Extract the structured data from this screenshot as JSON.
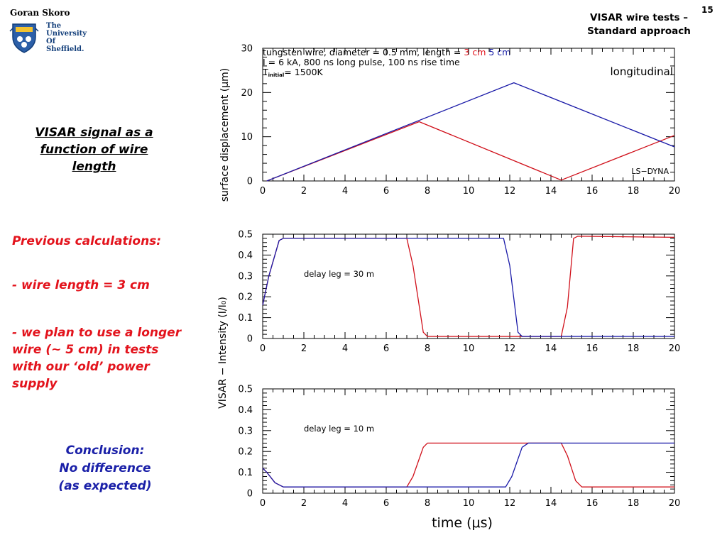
{
  "header": {
    "author": "Goran Skoro",
    "university_lines": [
      "The",
      "University",
      "Of",
      "Sheffield."
    ],
    "title_lines": [
      "VISAR wire tests –",
      "Standard approach"
    ],
    "slide_number": "15"
  },
  "left_panel": {
    "heading_lines": [
      "VISAR signal as a",
      "function of wire",
      "length"
    ],
    "previous_label": "Previous calculations:",
    "bullet1": "- wire length = 3 cm",
    "bullet2_lines": [
      "- we plan to use a longer",
      "wire (~ 5 cm) in tests",
      "with our ‘old’ power",
      "supply"
    ],
    "conclusion_lines": [
      "Conclusion:",
      "No difference",
      "(as expected)"
    ]
  },
  "chart_data": [
    {
      "type": "line",
      "annotation_lines": {
        "line1_prefix": "tungsten wire, diameter = 0.5 mm, length = ",
        "line1_red": "3 cm",
        "line1_blue": "5 cm",
        "line2": "I = 6 kA, 800 ns long pulse, 100 ns rise time",
        "line3_T": "T",
        "line3_sub": "initial",
        "line3_rest": "= 1500K"
      },
      "corner_label": "longitudinal",
      "code_label": "LS−DYNA",
      "ylabel": "surface displacement (μm)",
      "xlim": [
        0,
        20
      ],
      "ylim": [
        0,
        30
      ],
      "xticks": [
        "0",
        "2",
        "4",
        "6",
        "8",
        "10",
        "12",
        "14",
        "16",
        "18",
        "20"
      ],
      "yticks": [
        "0",
        "10",
        "20",
        "30"
      ],
      "series": [
        {
          "name": "3 cm",
          "color": "#d0101a",
          "x": [
            0.2,
            7.6,
            14.5,
            20
          ],
          "y": [
            0,
            13.4,
            0.2,
            10.3
          ]
        },
        {
          "name": "5 cm",
          "color": "#1a1aa8",
          "x": [
            0.2,
            12.2,
            20
          ],
          "y": [
            0,
            22.2,
            7.7
          ]
        }
      ]
    },
    {
      "type": "line",
      "annotation": "delay leg = 30 m",
      "xlim": [
        0,
        20
      ],
      "ylim": [
        0,
        0.5
      ],
      "xticks": [
        "0",
        "2",
        "4",
        "6",
        "8",
        "10",
        "12",
        "14",
        "16",
        "18",
        "20"
      ],
      "yticks": [
        "0",
        "0.1",
        "0.2",
        "0.3",
        "0.4",
        "0.5"
      ],
      "series": [
        {
          "name": "3 cm",
          "color": "#d0101a",
          "x": [
            0,
            0.3,
            0.8,
            1.0,
            7.0,
            7.3,
            7.8,
            8.0,
            14.5,
            14.8,
            15.1,
            15.3,
            20
          ],
          "y": [
            0.16,
            0.3,
            0.47,
            0.48,
            0.48,
            0.35,
            0.03,
            0.01,
            0.01,
            0.15,
            0.48,
            0.49,
            0.485
          ]
        },
        {
          "name": "5 cm",
          "color": "#1a1aa8",
          "x": [
            0,
            0.3,
            0.8,
            1.0,
            11.7,
            12.0,
            12.4,
            12.6,
            20
          ],
          "y": [
            0.16,
            0.3,
            0.47,
            0.48,
            0.48,
            0.35,
            0.03,
            0.01,
            0.01
          ]
        }
      ]
    },
    {
      "type": "line",
      "annotation": "delay leg = 10 m",
      "xlabel": "time (μs)",
      "xlim": [
        0,
        20
      ],
      "ylim": [
        0,
        0.5
      ],
      "xticks": [
        "0",
        "2",
        "4",
        "6",
        "8",
        "10",
        "12",
        "14",
        "16",
        "18",
        "20"
      ],
      "yticks": [
        "0",
        "0.1",
        "0.2",
        "0.3",
        "0.4",
        "0.5"
      ],
      "series": [
        {
          "name": "3 cm",
          "color": "#d0101a",
          "x": [
            0,
            0.2,
            0.6,
            1.0,
            7.0,
            7.3,
            7.8,
            8.0,
            14.5,
            14.8,
            15.2,
            15.5,
            20
          ],
          "y": [
            0.12,
            0.1,
            0.05,
            0.03,
            0.03,
            0.08,
            0.22,
            0.24,
            0.24,
            0.18,
            0.06,
            0.03,
            0.03
          ]
        },
        {
          "name": "5 cm",
          "color": "#1a1aa8",
          "x": [
            0,
            0.2,
            0.6,
            1.0,
            11.8,
            12.1,
            12.6,
            12.9,
            20
          ],
          "y": [
            0.12,
            0.1,
            0.05,
            0.03,
            0.03,
            0.08,
            0.22,
            0.24,
            0.24
          ]
        }
      ]
    }
  ],
  "shared_ylabel": "VISAR − Intensity (I/I₀)"
}
